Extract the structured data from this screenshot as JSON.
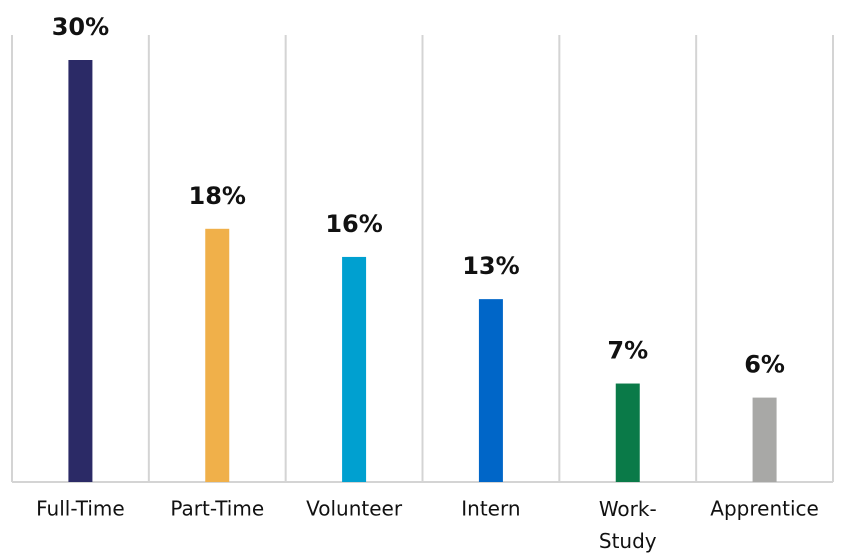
{
  "chart_data": {
    "type": "bar",
    "categories": [
      "Full-Time",
      "Part-Time",
      "Volunteer",
      "Intern",
      "Work-Study",
      "Apprentice"
    ],
    "values": [
      30,
      18,
      16,
      13,
      7,
      6
    ],
    "value_labels": [
      "30%",
      "18%",
      "16%",
      "13%",
      "7%",
      "6%"
    ],
    "colors": [
      "#2b2a66",
      "#f0b04a",
      "#00a0d0",
      "#0066c8",
      "#0a7a48",
      "#a8a8a6"
    ]
  }
}
